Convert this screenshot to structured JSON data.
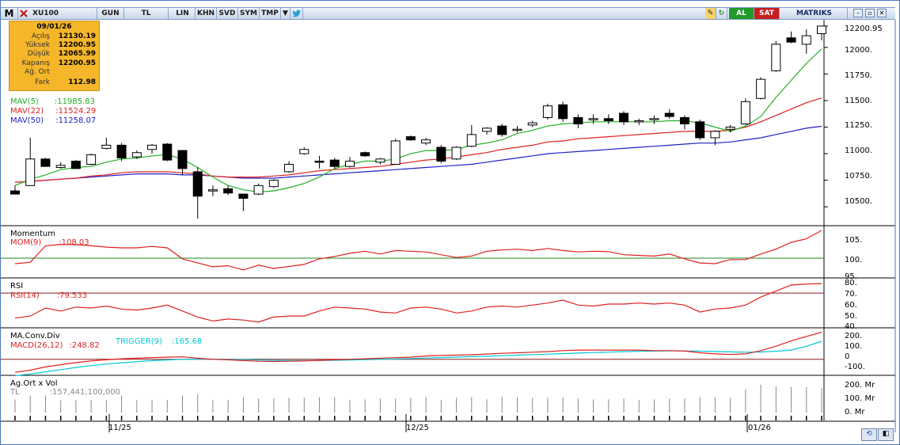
{
  "toolbar": {
    "logo": "M",
    "symbol": "XU100",
    "period": "GUN",
    "currency": "TL",
    "buttons": [
      "LIN",
      "KHN",
      "SVD",
      "SYM",
      "TMP"
    ],
    "edit_icon": "pencil-icon",
    "refresh_icon": "refresh-icon",
    "buy": "AL",
    "sell": "SAT",
    "brand": "MATRIKS",
    "twitter_icon": "twitter-icon"
  },
  "info": {
    "date": "09/01/26",
    "rows": [
      {
        "label": "Açılış",
        "value": "12130.19"
      },
      {
        "label": "Yüksek",
        "value": "12200.95"
      },
      {
        "label": "Düşük",
        "value": "12065.99"
      },
      {
        "label": "Kapanış",
        "value": "12200.95"
      },
      {
        "label": "Ağ. Ort",
        "value": ""
      },
      {
        "label": "Fark",
        "value": "112.98"
      }
    ]
  },
  "price_panel": {
    "legend": [
      {
        "label": "MAV(5)",
        "value": ":11985.83",
        "color": "#22b022"
      },
      {
        "label": "MAV(22)",
        "value": ":11524.29",
        "color": "#e02020"
      },
      {
        "label": "MAV(50)",
        "value": ":11258.07",
        "color": "#2020c8"
      }
    ],
    "axis_labels": [
      "12200.95",
      "12000.",
      "11750.",
      "11500.",
      "11250.",
      "11000.",
      "10750.",
      "10500."
    ]
  },
  "momentum_panel": {
    "title": "Momentum",
    "legend": {
      "label": "MOM(9)",
      "value": ":108.03",
      "color": "#e02020"
    },
    "axis_labels": [
      "105.",
      "100.",
      "95."
    ]
  },
  "rsi_panel": {
    "title": "RSI",
    "legend": {
      "label": "RSI(14)",
      "value": ":79.533",
      "color": "#e02020"
    },
    "axis_labels": [
      "80.",
      "70.",
      "60.",
      "50.",
      "40."
    ]
  },
  "macd_panel": {
    "title": "MA.Conv.Div",
    "legend": {
      "label": "MACD(26,12)",
      "value": ":248.82",
      "color": "#e02020"
    },
    "trigger": {
      "label": "TRIGGER(9)",
      "value": ":165.68",
      "color": "#00c8d8"
    },
    "axis_labels": [
      "200.",
      "100.",
      "0",
      "-100."
    ]
  },
  "volume_panel": {
    "title": "Ag.Ort x Vol",
    "legend": {
      "label": "TL",
      "value": ":157,441,100,000",
      "color": "#888888"
    },
    "axis_labels": [
      "200. Mr",
      "100. Mr",
      "0. Mr"
    ]
  },
  "x_labels": [
    "11/25",
    "12/25",
    "01/26"
  ],
  "chart_data": {
    "type": "candlestick",
    "symbol": "XU100",
    "candles": [
      {
        "o": 10650,
        "h": 10700,
        "l": 10620,
        "c": 10620
      },
      {
        "o": 10700,
        "h": 11150,
        "l": 10700,
        "c": 10950
      },
      {
        "o": 10950,
        "h": 10960,
        "l": 10880,
        "c": 10880
      },
      {
        "o": 10870,
        "h": 10920,
        "l": 10860,
        "c": 10890
      },
      {
        "o": 10930,
        "h": 10940,
        "l": 10860,
        "c": 10860
      },
      {
        "o": 10900,
        "h": 11000,
        "l": 10890,
        "c": 10990
      },
      {
        "o": 11050,
        "h": 11150,
        "l": 11040,
        "c": 11080
      },
      {
        "o": 11080,
        "h": 11100,
        "l": 10930,
        "c": 10960
      },
      {
        "o": 10970,
        "h": 11030,
        "l": 10950,
        "c": 11010
      },
      {
        "o": 11040,
        "h": 11090,
        "l": 11000,
        "c": 11080
      },
      {
        "o": 11090,
        "h": 11100,
        "l": 10930,
        "c": 10940
      },
      {
        "o": 11030,
        "h": 11030,
        "l": 10800,
        "c": 10860
      },
      {
        "o": 10830,
        "h": 10870,
        "l": 10390,
        "c": 10600
      },
      {
        "o": 10660,
        "h": 10700,
        "l": 10600,
        "c": 10660
      },
      {
        "o": 10670,
        "h": 10700,
        "l": 10610,
        "c": 10630
      },
      {
        "o": 10620,
        "h": 10620,
        "l": 10460,
        "c": 10580
      },
      {
        "o": 10620,
        "h": 10720,
        "l": 10610,
        "c": 10700
      },
      {
        "o": 10690,
        "h": 10760,
        "l": 10680,
        "c": 10750
      },
      {
        "o": 10830,
        "h": 10930,
        "l": 10820,
        "c": 10900
      },
      {
        "o": 11000,
        "h": 11060,
        "l": 10990,
        "c": 11040
      },
      {
        "o": 10930,
        "h": 10980,
        "l": 10860,
        "c": 10920
      },
      {
        "o": 10940,
        "h": 10960,
        "l": 10860,
        "c": 10880
      },
      {
        "o": 10880,
        "h": 10970,
        "l": 10870,
        "c": 10930
      },
      {
        "o": 11010,
        "h": 11020,
        "l": 10970,
        "c": 10980
      },
      {
        "o": 10920,
        "h": 10960,
        "l": 10900,
        "c": 10950
      },
      {
        "o": 10900,
        "h": 11140,
        "l": 10900,
        "c": 11120
      },
      {
        "o": 11160,
        "h": 11170,
        "l": 11120,
        "c": 11130
      },
      {
        "o": 11100,
        "h": 11150,
        "l": 11080,
        "c": 11130
      },
      {
        "o": 11060,
        "h": 11080,
        "l": 10910,
        "c": 10930
      },
      {
        "o": 10950,
        "h": 11070,
        "l": 10940,
        "c": 11060
      },
      {
        "o": 11070,
        "h": 11270,
        "l": 11060,
        "c": 11180
      },
      {
        "o": 11210,
        "h": 11250,
        "l": 11180,
        "c": 11240
      },
      {
        "o": 11260,
        "h": 11280,
        "l": 11160,
        "c": 11180
      },
      {
        "o": 11230,
        "h": 11260,
        "l": 11200,
        "c": 11230
      },
      {
        "o": 11270,
        "h": 11310,
        "l": 11250,
        "c": 11290
      },
      {
        "o": 11340,
        "h": 11470,
        "l": 11320,
        "c": 11450
      },
      {
        "o": 11460,
        "h": 11490,
        "l": 11300,
        "c": 11330
      },
      {
        "o": 11340,
        "h": 11370,
        "l": 11240,
        "c": 11280
      },
      {
        "o": 11320,
        "h": 11370,
        "l": 11280,
        "c": 11330
      },
      {
        "o": 11330,
        "h": 11370,
        "l": 11280,
        "c": 11310
      },
      {
        "o": 11380,
        "h": 11400,
        "l": 11270,
        "c": 11300
      },
      {
        "o": 11300,
        "h": 11330,
        "l": 11270,
        "c": 11310
      },
      {
        "o": 11320,
        "h": 11360,
        "l": 11280,
        "c": 11330
      },
      {
        "o": 11380,
        "h": 11420,
        "l": 11330,
        "c": 11350
      },
      {
        "o": 11340,
        "h": 11360,
        "l": 11230,
        "c": 11280
      },
      {
        "o": 11300,
        "h": 11320,
        "l": 11130,
        "c": 11150
      },
      {
        "o": 11150,
        "h": 11220,
        "l": 11080,
        "c": 11210
      },
      {
        "o": 11230,
        "h": 11270,
        "l": 11200,
        "c": 11250
      },
      {
        "o": 11280,
        "h": 11520,
        "l": 11270,
        "c": 11490
      },
      {
        "o": 11520,
        "h": 11720,
        "l": 11510,
        "c": 11700
      },
      {
        "o": 11780,
        "h": 12060,
        "l": 11770,
        "c": 12030
      },
      {
        "o": 12090,
        "h": 12150,
        "l": 12040,
        "c": 12050
      },
      {
        "o": 12030,
        "h": 12170,
        "l": 11940,
        "c": 12110
      },
      {
        "o": 12130.19,
        "h": 12200.95,
        "l": 12065.99,
        "c": 12200.95
      }
    ],
    "mav5": [
      10700,
      10760,
      10800,
      10850,
      10870,
      10880,
      10920,
      10950,
      10960,
      10980,
      10990,
      10950,
      10870,
      10780,
      10700,
      10660,
      10640,
      10650,
      10680,
      10720,
      10780,
      10860,
      10900,
      10930,
      10930,
      10950,
      11000,
      11030,
      11030,
      11040,
      11080,
      11100,
      11130,
      11190,
      11220,
      11260,
      11280,
      11290,
      11300,
      11300,
      11300,
      11300,
      11300,
      11310,
      11310,
      11290,
      11250,
      11210,
      11260,
      11350,
      11530,
      11690,
      11850,
      11985.83
    ],
    "mav22": [
      10730,
      10740,
      10750,
      10760,
      10770,
      10790,
      10800,
      10820,
      10830,
      10830,
      10830,
      10820,
      10810,
      10790,
      10780,
      10780,
      10780,
      10790,
      10800,
      10820,
      10840,
      10850,
      10860,
      10870,
      10880,
      10900,
      10920,
      10940,
      10950,
      10970,
      10990,
      11010,
      11040,
      11060,
      11080,
      11110,
      11120,
      11140,
      11150,
      11160,
      11170,
      11180,
      11190,
      11200,
      11210,
      11210,
      11210,
      11220,
      11250,
      11300,
      11360,
      11420,
      11480,
      11524.29
    ],
    "mav50": [
      10730,
      10740,
      10750,
      10760,
      10770,
      10780,
      10790,
      10800,
      10810,
      10810,
      10810,
      10800,
      10800,
      10790,
      10780,
      10770,
      10770,
      10770,
      10780,
      10790,
      10800,
      10810,
      10820,
      10830,
      10840,
      10850,
      10860,
      10870,
      10880,
      10890,
      10900,
      10920,
      10940,
      10960,
      10980,
      11000,
      11010,
      11020,
      11030,
      11040,
      11050,
      11060,
      11070,
      11080,
      11090,
      11100,
      11100,
      11110,
      11130,
      11150,
      11180,
      11210,
      11240,
      11258.07
    ],
    "mom": [
      98.4,
      98.8,
      103.6,
      104.0,
      103.9,
      103.6,
      103.2,
      103.0,
      103.0,
      103.4,
      103.0,
      99.8,
      98.6,
      97.5,
      97.8,
      96.6,
      98.0,
      97.0,
      97.6,
      98.2,
      99.8,
      100.5,
      101.4,
      102.0,
      101.2,
      102.2,
      102.0,
      101.8,
      101.0,
      100.2,
      100.6,
      102.0,
      102.4,
      102.6,
      102.2,
      102.8,
      102.2,
      101.8,
      102.0,
      101.9,
      101.0,
      100.8,
      100.6,
      101.2,
      99.8,
      98.6,
      98.4,
      99.6,
      99.6,
      101.2,
      102.6,
      104.6,
      105.6,
      108.03
    ],
    "rsi": [
      45,
      47,
      55,
      52,
      56,
      55,
      57,
      54,
      53,
      55,
      58,
      52,
      46,
      42,
      44,
      43,
      41,
      46,
      47,
      47,
      52,
      56,
      55,
      54,
      51,
      50,
      55,
      56,
      54,
      50,
      52,
      56,
      57,
      56,
      58,
      60,
      63,
      58,
      57,
      59,
      59,
      60,
      59,
      60,
      58,
      51,
      54,
      55,
      58,
      66,
      72,
      78,
      79,
      79.533
    ],
    "macd": [
      -120,
      -100,
      -70,
      -50,
      -30,
      -15,
      -5,
      5,
      10,
      15,
      20,
      22,
      10,
      0,
      -5,
      -12,
      -18,
      -20,
      -18,
      -15,
      -10,
      -5,
      0,
      5,
      10,
      15,
      20,
      30,
      35,
      38,
      42,
      48,
      55,
      60,
      65,
      70,
      80,
      85,
      85,
      85,
      85,
      85,
      80,
      80,
      75,
      60,
      50,
      45,
      50,
      80,
      120,
      170,
      210,
      248.82
    ],
    "trigger": [
      -150,
      -135,
      -115,
      -95,
      -75,
      -58,
      -44,
      -32,
      -22,
      -13,
      -6,
      0,
      2,
      2,
      0,
      -3,
      -6,
      -9,
      -11,
      -12,
      -11,
      -9,
      -7,
      -4,
      -1,
      3,
      7,
      11,
      16,
      20,
      24,
      28,
      33,
      38,
      43,
      47,
      52,
      57,
      62,
      66,
      70,
      73,
      75,
      77,
      77,
      75,
      72,
      68,
      65,
      67,
      74,
      85,
      120,
      165.68
    ],
    "volume": [
      85,
      110,
      110,
      80,
      80,
      80,
      80,
      110,
      80,
      80,
      80,
      110,
      120,
      80,
      80,
      100,
      90,
      90,
      95,
      95,
      100,
      100,
      80,
      85,
      90,
      90,
      95,
      100,
      80,
      95,
      100,
      85,
      100,
      100,
      95,
      95,
      100,
      90,
      85,
      85,
      90,
      80,
      85,
      90,
      90,
      100,
      100,
      95,
      150,
      180,
      170,
      165,
      165,
      157.4
    ]
  }
}
